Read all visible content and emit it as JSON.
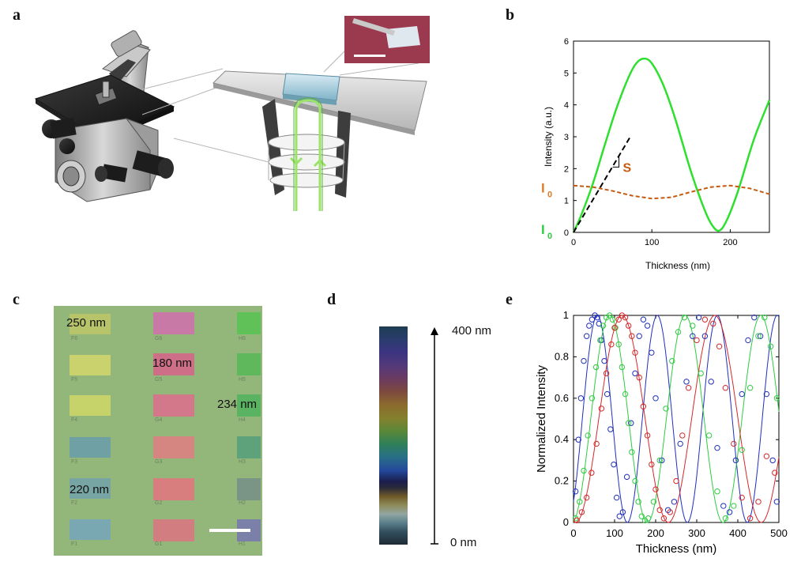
{
  "panels": {
    "a": {
      "letter": "a"
    },
    "b": {
      "letter": "b"
    },
    "c": {
      "letter": "c"
    },
    "d": {
      "letter": "d"
    },
    "e": {
      "letter": "e"
    }
  },
  "panel_c": {
    "labels": [
      "250 nm",
      "180 nm",
      "234 nm",
      "220 nm"
    ],
    "cell_ids": {
      "F": [
        "F6",
        "F5",
        "F4",
        "F3",
        "F2",
        "F1"
      ],
      "G": [
        "G6",
        "G5",
        "G4",
        "G3",
        "G2",
        "G1"
      ],
      "H": [
        "H6",
        "H5",
        "H4",
        "H3",
        "H2",
        "H1"
      ]
    }
  },
  "panel_d": {
    "top_label": "400 nm",
    "bottom_label": "0 nm"
  },
  "chart_data": [
    {
      "panel": "b",
      "type": "line",
      "xlabel": "Thickness (nm)",
      "ylabel": "Intensity (a.u.)",
      "xlim": [
        0,
        250
      ],
      "ylim": [
        0,
        6
      ],
      "xticks": [
        0,
        100,
        200
      ],
      "yticks": [
        0,
        1,
        2,
        3,
        4,
        5,
        6
      ],
      "series": [
        {
          "color": "#2ee02e",
          "style": "solid",
          "x": [
            0,
            10,
            25,
            40,
            55,
            70,
            80,
            90,
            100,
            115,
            130,
            150,
            165,
            175,
            185,
            195,
            210,
            230,
            250
          ],
          "y": [
            0.0,
            0.55,
            1.55,
            2.75,
            3.9,
            4.85,
            5.3,
            5.45,
            5.3,
            4.6,
            3.55,
            1.9,
            0.85,
            0.3,
            0.05,
            0.35,
            1.3,
            2.9,
            4.15
          ]
        },
        {
          "color": "#c55a11",
          "style": "dashed",
          "x": [
            0,
            25,
            50,
            75,
            100,
            125,
            150,
            175,
            200,
            225,
            250
          ],
          "y": [
            1.47,
            1.42,
            1.3,
            1.15,
            1.06,
            1.1,
            1.27,
            1.42,
            1.47,
            1.38,
            1.2
          ]
        },
        {
          "color": "#000000",
          "style": "dashed",
          "x": [
            0,
            72
          ],
          "y": [
            0.0,
            2.98
          ]
        }
      ],
      "annotations": [
        {
          "text": "S",
          "color": "#c55a11"
        },
        {
          "text": "I",
          "sub": "0",
          "color": "#e07b28"
        },
        {
          "text": "I",
          "sub": "0",
          "color": "#2ecc40"
        }
      ]
    },
    {
      "panel": "e",
      "type": "scatter",
      "xlabel": "Thickness (nm)",
      "ylabel": "Normalized Intensity",
      "xlim": [
        0,
        500
      ],
      "ylim": [
        0,
        1
      ],
      "xticks": [
        0,
        100,
        200,
        300,
        400,
        500
      ],
      "yticks": [
        0,
        0.2,
        0.4,
        0.6,
        0.8,
        1
      ],
      "series": [
        {
          "color": "#1f2fbf",
          "fit": {
            "period": 146,
            "peak": 58
          },
          "points_x": [
            5,
            12,
            18,
            25,
            32,
            38,
            45,
            52,
            58,
            62,
            68,
            75,
            82,
            90,
            98,
            105,
            112,
            120,
            130,
            140,
            150,
            160,
            170,
            180,
            190,
            200,
            215,
            230,
            245,
            260,
            275,
            290,
            305,
            320,
            335,
            350,
            365,
            380,
            395,
            410,
            425,
            440,
            455,
            470,
            485,
            495
          ],
          "points_y": [
            0.15,
            0.4,
            0.6,
            0.78,
            0.9,
            0.95,
            0.98,
            1.0,
            0.99,
            0.96,
            0.88,
            0.78,
            0.62,
            0.45,
            0.28,
            0.12,
            0.03,
            0.05,
            0.22,
            0.48,
            0.72,
            0.9,
            0.98,
            0.95,
            0.82,
            0.6,
            0.3,
            0.06,
            0.1,
            0.38,
            0.68,
            0.9,
            0.99,
            0.9,
            0.68,
            0.36,
            0.08,
            0.05,
            0.3,
            0.62,
            0.88,
            0.99,
            0.9,
            0.62,
            0.3,
            0.1
          ]
        },
        {
          "color": "#2ecc40",
          "fit": {
            "period": 184,
            "peak": 88
          },
          "points_x": [
            5,
            15,
            25,
            35,
            45,
            55,
            65,
            72,
            80,
            88,
            95,
            102,
            110,
            118,
            126,
            134,
            142,
            150,
            158,
            166,
            174,
            182,
            195,
            210,
            225,
            240,
            255,
            270,
            290,
            310,
            330,
            350,
            370,
            390,
            410,
            430,
            450,
            465,
            480,
            495
          ],
          "points_y": [
            0.02,
            0.1,
            0.25,
            0.42,
            0.6,
            0.75,
            0.88,
            0.95,
            0.99,
            1.0,
            0.98,
            0.94,
            0.86,
            0.75,
            0.62,
            0.48,
            0.34,
            0.2,
            0.1,
            0.03,
            0.01,
            0.02,
            0.1,
            0.3,
            0.55,
            0.78,
            0.92,
            0.99,
            0.95,
            0.72,
            0.42,
            0.15,
            0.02,
            0.08,
            0.35,
            0.65,
            0.9,
            0.99,
            0.85,
            0.6
          ]
        },
        {
          "color": "#d62728",
          "fit": {
            "period": 226,
            "peak": 118
          },
          "points_x": [
            8,
            20,
            32,
            44,
            56,
            68,
            80,
            92,
            100,
            110,
            118,
            126,
            134,
            142,
            150,
            160,
            170,
            180,
            190,
            200,
            210,
            220,
            235,
            250,
            265,
            280,
            300,
            320,
            340,
            355,
            370,
            390,
            410,
            430,
            450,
            470,
            490
          ],
          "points_y": [
            0.01,
            0.05,
            0.12,
            0.24,
            0.38,
            0.55,
            0.72,
            0.86,
            0.94,
            0.98,
            1.0,
            0.99,
            0.95,
            0.9,
            0.82,
            0.7,
            0.56,
            0.42,
            0.28,
            0.16,
            0.06,
            0.02,
            0.05,
            0.2,
            0.42,
            0.65,
            0.88,
            0.98,
            0.96,
            0.85,
            0.65,
            0.38,
            0.12,
            0.02,
            0.1,
            0.32,
            0.24
          ]
        }
      ]
    }
  ]
}
